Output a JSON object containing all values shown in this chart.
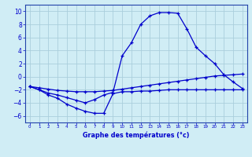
{
  "title": "Graphe des températures (°c)",
  "bg_color": "#d0edf5",
  "grid_color": "#aacfdc",
  "line_color": "#0000cc",
  "spine_color": "#2244aa",
  "xlim": [
    -0.5,
    23.5
  ],
  "ylim": [
    -7,
    11
  ],
  "yticks": [
    -6,
    -4,
    -2,
    0,
    2,
    4,
    6,
    8,
    10
  ],
  "xticks": [
    0,
    1,
    2,
    3,
    4,
    5,
    6,
    7,
    8,
    9,
    10,
    11,
    12,
    13,
    14,
    15,
    16,
    17,
    18,
    19,
    20,
    21,
    22,
    23
  ],
  "curve_top_x": [
    0,
    1,
    2,
    3,
    4,
    5,
    6,
    7,
    8,
    9,
    10,
    11,
    12,
    13,
    14,
    15,
    16,
    17,
    18,
    19,
    20,
    21,
    22,
    23
  ],
  "curve_top_y": [
    -1.5,
    -2.0,
    -2.5,
    -2.8,
    -3.2,
    -3.6,
    -4.0,
    -3.5,
    -2.8,
    -2.4,
    3.2,
    5.2,
    8.0,
    9.3,
    9.8,
    9.8,
    9.7,
    7.3,
    4.5,
    3.2,
    2.0,
    0.3,
    -0.8,
    -1.8
  ],
  "curve_mid_x": [
    0,
    1,
    2,
    3,
    4,
    5,
    6,
    7,
    8,
    9,
    10,
    11,
    12,
    13,
    14,
    15,
    16,
    17,
    18,
    19,
    20,
    21,
    22,
    23
  ],
  "curve_mid_y": [
    -1.5,
    -1.7,
    -1.9,
    -2.1,
    -2.2,
    -2.3,
    -2.3,
    -2.3,
    -2.2,
    -2.1,
    -1.9,
    -1.7,
    -1.5,
    -1.3,
    -1.1,
    -0.9,
    -0.7,
    -0.5,
    -0.3,
    -0.1,
    0.1,
    0.2,
    0.3,
    0.4
  ],
  "curve_bot_x": [
    0,
    1,
    2,
    3,
    4,
    5,
    6,
    7,
    8,
    9,
    10,
    11,
    12,
    13,
    14,
    15,
    16,
    17,
    18,
    19,
    20,
    21,
    22,
    23
  ],
  "curve_bot_y": [
    -1.5,
    -2.0,
    -2.8,
    -3.3,
    -4.2,
    -4.8,
    -5.3,
    -5.6,
    -5.6,
    -2.6,
    -2.3,
    -2.3,
    -2.2,
    -2.2,
    -2.1,
    -2.0,
    -2.0,
    -2.0,
    -2.0,
    -2.0,
    -2.0,
    -2.0,
    -2.0,
    -2.0
  ]
}
